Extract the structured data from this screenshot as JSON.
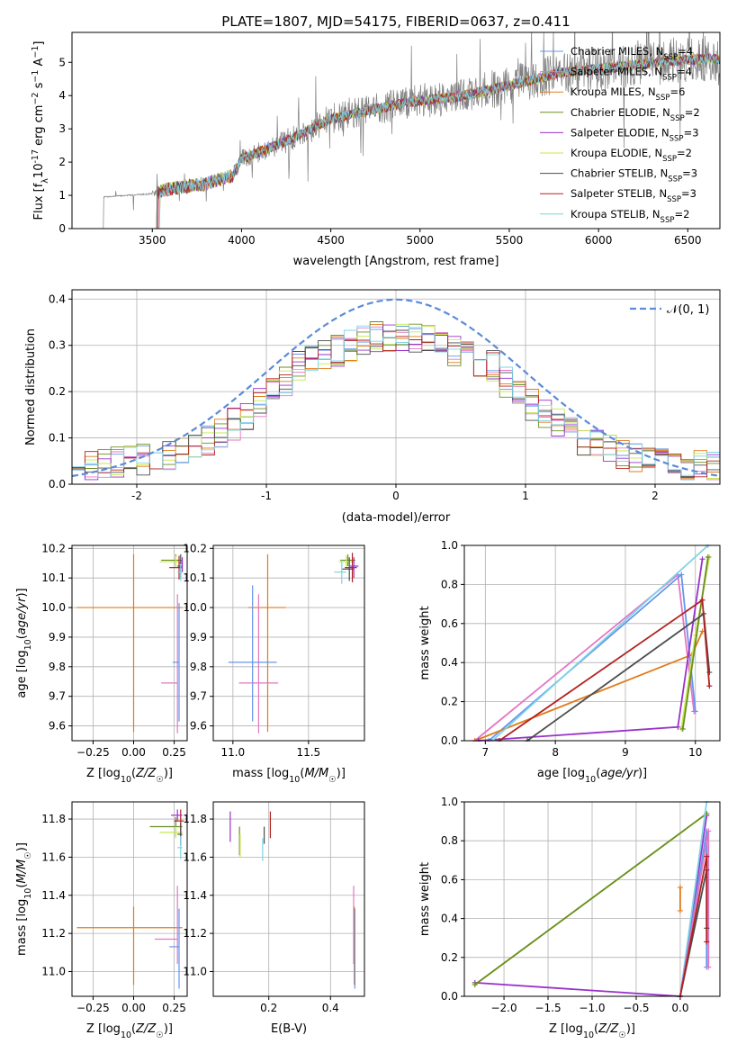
{
  "figure_title": "PLATE=1807, MJD=54175, FIBERID=0637, z=0.411",
  "models": [
    {
      "name": "Chabrier MILES",
      "nssp": "4",
      "color": "#6495ed"
    },
    {
      "name": "Salpeter MILES",
      "nssp": "4",
      "color": "#e377c2"
    },
    {
      "name": "Kroupa MILES",
      "nssp": "6",
      "color": "#e07b1a"
    },
    {
      "name": "Chabrier ELODIE",
      "nssp": "2",
      "color": "#6b8e23"
    },
    {
      "name": "Salpeter ELODIE",
      "nssp": "3",
      "color": "#9932cc"
    },
    {
      "name": "Kroupa ELODIE",
      "nssp": "2",
      "color": "#c5e84c"
    },
    {
      "name": "Chabrier STELIB",
      "nssp": "3",
      "color": "#4d4d4d"
    },
    {
      "name": "Salpeter STELIB",
      "nssp": "3",
      "color": "#b22222"
    },
    {
      "name": "Kroupa STELIB",
      "nssp": "2",
      "color": "#7fd3e6"
    }
  ],
  "chart_data": [
    {
      "id": "spectrum",
      "type": "line",
      "title": "PLATE=1807, MJD=54175, FIBERID=0637, z=0.411",
      "xlabel": "wavelength [Angstrom, rest frame]",
      "ylabel_main": "Flux [f",
      "ylabel_sub": "λ",
      "ylabel_rest": "10",
      "ylabel_exp": "-17",
      "ylabel_tail": " erg cm",
      "xlim": [
        3050,
        6680
      ],
      "ylim": [
        0,
        5.9
      ],
      "xticks": [
        3500,
        4000,
        4500,
        5000,
        5500,
        6000,
        6500
      ],
      "yticks": [
        0,
        1,
        2,
        3,
        4,
        5
      ],
      "data_color": "#808080",
      "data_start": 3220,
      "model_start": 3520,
      "continuum_x": [
        3220,
        3500,
        3600,
        3800,
        3950,
        4000,
        4100,
        4300,
        4500,
        4800,
        5000,
        5200,
        5500,
        5800,
        6100,
        6400,
        6600
      ],
      "continuum_y": [
        0.95,
        1.05,
        1.2,
        1.35,
        1.6,
        2.1,
        2.3,
        2.75,
        3.3,
        3.65,
        3.85,
        3.95,
        4.3,
        4.7,
        4.85,
        5.05,
        5.1
      ],
      "legend_entries": [
        "Chabrier MILES, N",
        "Salpeter MILES, N",
        "Kroupa MILES, N",
        "Chabrier ELODIE, N",
        "Salpeter ELODIE, N",
        "Kroupa ELODIE, N",
        "Chabrier STELIB, N",
        "Salpeter STELIB, N",
        "Kroupa STELIB, N"
      ],
      "legend_sub": "SSP",
      "legend_values": [
        "=4",
        "=4",
        "=6",
        "=2",
        "=3",
        "=2",
        "=3",
        "=3",
        "=2"
      ]
    },
    {
      "id": "residuals",
      "type": "histogram",
      "xlabel": "(data-model)/error",
      "ylabel": "Normed distribution",
      "xlim": [
        -2.5,
        2.5
      ],
      "ylim": [
        0,
        0.42
      ],
      "xticks": [
        -2,
        -1,
        0,
        1,
        2
      ],
      "yticks": [
        0.0,
        0.1,
        0.2,
        0.3,
        0.4
      ],
      "bin_width": 0.1,
      "bins_from": -2.5,
      "gaussian_label": "𝒩(0, 1)",
      "gaussian_color": "#5b8bd9",
      "grid": true
    },
    {
      "id": "age_vs_Z",
      "type": "errorbar",
      "xlabel": "Z [log10(Z/Z☉)]",
      "ylabel": "age  [log10(age/yr)]",
      "xlim": [
        -0.38,
        0.33
      ],
      "ylim": [
        9.55,
        10.21
      ],
      "xticks": [
        -0.25,
        0.0,
        0.25
      ],
      "yticks": [
        9.6,
        9.7,
        9.8,
        9.9,
        10.0,
        10.1,
        10.2
      ],
      "points": [
        {
          "model": 2,
          "x": 0.0,
          "y": 10.0,
          "xerr": [
            0.35,
            0.3
          ],
          "yerr": [
            0.42,
            0.18
          ]
        },
        {
          "model": 1,
          "x": 0.27,
          "y": 9.745,
          "xerr": [
            0.1,
            0.0
          ],
          "yerr": [
            0.17,
            0.3
          ]
        },
        {
          "model": 0,
          "x": 0.28,
          "y": 9.815,
          "xerr": [
            0.04,
            0.0
          ],
          "yerr": [
            0.2,
            0.2
          ]
        },
        {
          "model": 3,
          "x": 0.26,
          "y": 10.16,
          "xerr": [
            0.09,
            0.04
          ],
          "yerr": [
            0.02,
            0.02
          ]
        },
        {
          "model": 5,
          "x": 0.26,
          "y": 10.155,
          "xerr": [
            0.1,
            0.04
          ],
          "yerr": [
            0.02,
            0.02
          ]
        },
        {
          "model": 7,
          "x": 0.28,
          "y": 10.135,
          "xerr": [
            0.06,
            0.02
          ],
          "yerr": [
            0.04,
            0.04
          ]
        },
        {
          "model": 6,
          "x": 0.29,
          "y": 10.14,
          "xerr": [
            0.02,
            0.01
          ],
          "yerr": [
            0.04,
            0.04
          ]
        },
        {
          "model": 8,
          "x": 0.29,
          "y": 10.12,
          "xerr": [
            0.02,
            0.01
          ],
          "yerr": [
            0.03,
            0.03
          ]
        },
        {
          "model": 4,
          "x": 0.3,
          "y": 10.15,
          "xerr": [
            0.02,
            0.0
          ],
          "yerr": [
            0.03,
            0.02
          ]
        }
      ]
    },
    {
      "id": "age_vs_mass",
      "type": "errorbar",
      "xlabel": "mass [log10(M/M☉)]",
      "xlim": [
        10.87,
        11.87
      ],
      "ylim": [
        9.55,
        10.21
      ],
      "xticks": [
        11.0,
        11.5
      ],
      "yticks": [
        9.6,
        9.7,
        9.8,
        9.9,
        10.0,
        10.1,
        10.2
      ],
      "points": [
        {
          "model": 2,
          "x": 11.23,
          "y": 10.0,
          "xerr": [
            0.13,
            0.12
          ],
          "yerr": [
            0.42,
            0.18
          ]
        },
        {
          "model": 1,
          "x": 11.17,
          "y": 9.745,
          "xerr": [
            0.13,
            0.13
          ],
          "yerr": [
            0.17,
            0.3
          ]
        },
        {
          "model": 0,
          "x": 11.13,
          "y": 9.815,
          "xerr": [
            0.16,
            0.16
          ],
          "yerr": [
            0.2,
            0.26
          ]
        },
        {
          "model": 3,
          "x": 11.76,
          "y": 10.16,
          "xerr": [
            0.05,
            0.05
          ],
          "yerr": [
            0.02,
            0.02
          ]
        },
        {
          "model": 5,
          "x": 11.75,
          "y": 10.155,
          "xerr": [
            0.05,
            0.05
          ],
          "yerr": [
            0.02,
            0.02
          ]
        },
        {
          "model": 7,
          "x": 11.79,
          "y": 10.135,
          "xerr": [
            0.05,
            0.03
          ],
          "yerr": [
            0.05,
            0.05
          ]
        },
        {
          "model": 6,
          "x": 11.77,
          "y": 10.13,
          "xerr": [
            0.05,
            0.03
          ],
          "yerr": [
            0.04,
            0.04
          ]
        },
        {
          "model": 8,
          "x": 11.72,
          "y": 10.12,
          "xerr": [
            0.05,
            0.03
          ],
          "yerr": [
            0.04,
            0.04
          ]
        },
        {
          "model": 4,
          "x": 11.8,
          "y": 10.14,
          "xerr": [
            0.03,
            0.03
          ],
          "yerr": [
            0.04,
            0.03
          ]
        }
      ]
    },
    {
      "id": "mass_weight_vs_age",
      "type": "line",
      "xlabel": "age  [log10(age/yr)]",
      "ylabel": "mass weight",
      "xlim": [
        6.7,
        10.35
      ],
      "ylim": [
        0,
        1
      ],
      "xticks": [
        7,
        8,
        9,
        10
      ],
      "yticks": [
        0.0,
        0.2,
        0.4,
        0.6,
        0.8,
        1.0
      ],
      "series": [
        {
          "model": 1,
          "x": [
            6.85,
            9.75,
            9.98
          ],
          "y": [
            0.0,
            0.85,
            0.15
          ]
        },
        {
          "model": 0,
          "x": 7.05,
          "x_list": [
            7.05,
            9.8,
            10.0
          ],
          "y": [
            0.0,
            0.85,
            0.15
          ]
        },
        {
          "model": 2,
          "x": [
            6.85,
            9.95,
            10.1
          ],
          "y": [
            0.0,
            0.44,
            0.56
          ]
        },
        {
          "model": 4,
          "x": [
            6.9,
            9.75,
            10.1
          ],
          "y": [
            0.0,
            0.07,
            0.93
          ]
        },
        {
          "model": 5,
          "x": [
            9.8,
            10.0,
            10.2
          ],
          "y": [
            0.06,
            0.54,
            0.94
          ]
        },
        {
          "model": 3,
          "x": [
            9.82,
            10.18
          ],
          "y": [
            0.06,
            0.94
          ]
        },
        {
          "model": 8,
          "x": [
            7.1,
            10.18
          ],
          "y": [
            0.0,
            1.0
          ]
        },
        {
          "model": 6,
          "x": [
            7.6,
            10.12,
            10.2
          ],
          "y": [
            0.0,
            0.65,
            0.35
          ]
        },
        {
          "model": 7,
          "x": [
            7.2,
            10.1,
            10.2
          ],
          "y": [
            0.0,
            0.72,
            0.28
          ]
        }
      ]
    },
    {
      "id": "mass_vs_Z",
      "type": "errorbar",
      "xlabel": "Z [log10(Z/Z☉)]",
      "ylabel": "mass [log10(M/M☉)]",
      "xlim": [
        -0.38,
        0.33
      ],
      "ylim": [
        10.87,
        11.89
      ],
      "xticks": [
        -0.25,
        0.0,
        0.25
      ],
      "yticks": [
        11.0,
        11.2,
        11.4,
        11.6,
        11.8
      ],
      "points": [
        {
          "model": 2,
          "x": 0.0,
          "y": 11.23,
          "xerr": [
            0.35,
            0.3
          ],
          "yerr": [
            0.3,
            0.11
          ]
        },
        {
          "model": 1,
          "x": 0.27,
          "y": 11.17,
          "xerr": [
            0.14,
            0.0
          ],
          "yerr": [
            0.13,
            0.28
          ]
        },
        {
          "model": 0,
          "x": 0.28,
          "y": 11.13,
          "xerr": [
            0.06,
            0.0
          ],
          "yerr": [
            0.22,
            0.2
          ]
        },
        {
          "model": 3,
          "x": 0.26,
          "y": 11.76,
          "xerr": [
            0.16,
            0.04
          ],
          "yerr": [
            0.05,
            0.05
          ]
        },
        {
          "model": 5,
          "x": 0.26,
          "y": 11.73,
          "xerr": [
            0.1,
            0.04
          ],
          "yerr": [
            0.03,
            0.03
          ]
        },
        {
          "model": 7,
          "x": 0.29,
          "y": 11.79,
          "xerr": [
            0.04,
            0.02
          ],
          "yerr": [
            0.08,
            0.06
          ]
        },
        {
          "model": 6,
          "x": 0.29,
          "y": 11.72,
          "xerr": [
            0.02,
            0.01
          ],
          "yerr": [
            0.06,
            0.06
          ]
        },
        {
          "model": 8,
          "x": 0.29,
          "y": 11.65,
          "xerr": [
            0.02,
            0.01
          ],
          "yerr": [
            0.06,
            0.06
          ]
        },
        {
          "model": 4,
          "x": 0.27,
          "y": 11.82,
          "xerr": [
            0.04,
            0.03
          ],
          "yerr": [
            0.03,
            0.03
          ]
        }
      ]
    },
    {
      "id": "mass_vs_EBV",
      "type": "errorbar",
      "xlabel": "E(B-V)",
      "xlim": [
        0.02,
        0.51
      ],
      "ylim": [
        10.87,
        11.89
      ],
      "xticks": [
        0.2,
        0.4
      ],
      "yticks": [
        11.0,
        11.2,
        11.4,
        11.6,
        11.8
      ],
      "points": [
        {
          "model": 4,
          "x": 0.075,
          "y": 11.76,
          "xerr": [
            0,
            0
          ],
          "yerr": [
            0.08,
            0.08
          ]
        },
        {
          "model": 3,
          "x": 0.105,
          "y": 11.68,
          "xerr": [
            0,
            0
          ],
          "yerr": [
            0.07,
            0.08
          ]
        },
        {
          "model": 5,
          "x": 0.107,
          "y": 11.66,
          "xerr": [
            0,
            0
          ],
          "yerr": [
            0.06,
            0.06
          ]
        },
        {
          "model": 8,
          "x": 0.18,
          "y": 11.64,
          "xerr": [
            0,
            0
          ],
          "yerr": [
            0.06,
            0.06
          ]
        },
        {
          "model": 6,
          "x": 0.185,
          "y": 11.72,
          "xerr": [
            0,
            0
          ],
          "yerr": [
            0.05,
            0.04
          ]
        },
        {
          "model": 7,
          "x": 0.205,
          "y": 11.76,
          "xerr": [
            0,
            0
          ],
          "yerr": [
            0.06,
            0.08
          ]
        },
        {
          "model": 1,
          "x": 0.475,
          "y": 11.17,
          "xerr": [
            0,
            0
          ],
          "yerr": [
            0.13,
            0.28
          ]
        },
        {
          "model": 2,
          "x": 0.477,
          "y": 11.23,
          "xerr": [
            0,
            0
          ],
          "yerr": [
            0.3,
            0.11
          ]
        },
        {
          "model": 0,
          "x": 0.479,
          "y": 11.13,
          "xerr": [
            0,
            0
          ],
          "yerr": [
            0.22,
            0.2
          ]
        }
      ]
    },
    {
      "id": "mass_weight_vs_Z",
      "type": "line",
      "xlabel": "Z [log10(Z/Z☉)]",
      "ylabel": "mass weight",
      "xlim": [
        -2.45,
        0.45
      ],
      "ylim": [
        0,
        1
      ],
      "xticks": [
        -2.0,
        -1.5,
        -1.0,
        -0.5,
        0.0
      ],
      "yticks": [
        0.0,
        0.2,
        0.4,
        0.6,
        0.8,
        1.0
      ],
      "series": [
        {
          "model": 4,
          "x": [
            -2.33,
            0.0,
            0.3
          ],
          "y": [
            0.07,
            0.0,
            0.93
          ]
        },
        {
          "model": 5,
          "x": [
            -2.33,
            0.3
          ],
          "y": [
            0.06,
            0.94
          ]
        },
        {
          "model": 3,
          "x": [
            -2.33,
            0.3
          ],
          "y": [
            0.06,
            0.94
          ]
        },
        {
          "model": 2,
          "x": [
            0.0,
            0.0
          ],
          "y": [
            0.44,
            0.56
          ]
        },
        {
          "model": 8,
          "x": [
            0.0,
            0.3
          ],
          "y": [
            0.0,
            1.0
          ]
        },
        {
          "model": 0,
          "x": [
            0.0,
            0.3,
            0.3
          ],
          "y": [
            0.0,
            0.85,
            0.15
          ]
        },
        {
          "model": 1,
          "x": [
            0.0,
            0.32,
            0.32
          ],
          "y": [
            0.0,
            0.85,
            0.15
          ]
        },
        {
          "model": 6,
          "x": [
            0.0,
            0.3,
            0.3
          ],
          "y": [
            0.0,
            0.65,
            0.35
          ]
        },
        {
          "model": 7,
          "x": [
            0.0,
            0.3,
            0.3
          ],
          "y": [
            0.0,
            0.72,
            0.28
          ]
        }
      ]
    }
  ]
}
